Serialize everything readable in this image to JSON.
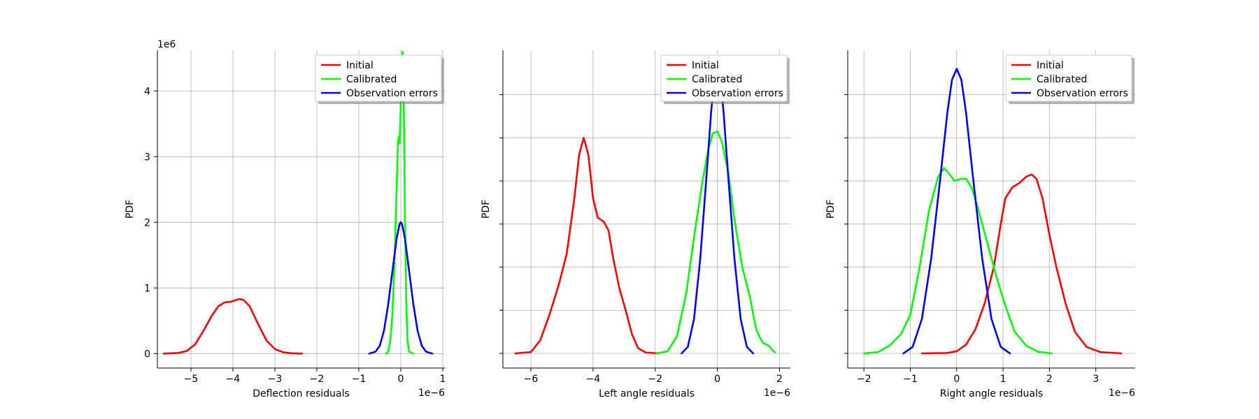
{
  "colors": {
    "initial": "#ff0000",
    "calibrated": "#00ff00",
    "observation": "#0000ff",
    "grid": "#b0b0b0"
  },
  "chart_data": [
    {
      "type": "line",
      "xlabel": "Deflection residuals",
      "ylabel": "PDF",
      "x_offset_label": "1e−6",
      "y_offset_label": "1e6",
      "xlim": [
        -5.8,
        1.05
      ],
      "ylim": [
        -0.22,
        4.62
      ],
      "xticks": [
        -5,
        -4,
        -3,
        -2,
        -1,
        0,
        1
      ],
      "xtick_labels": [
        "−5",
        "−4",
        "−3",
        "−2",
        "−1",
        "0",
        "1"
      ],
      "yticks": [
        0,
        1,
        2,
        3,
        4
      ],
      "ytick_labels": [
        "0",
        "1",
        "2",
        "3",
        "4"
      ],
      "legend": "top-right",
      "series": [
        {
          "name": "Initial",
          "color": "#ff0000",
          "points": [
            [
              -5.65,
              0
            ],
            [
              -5.3,
              0.01
            ],
            [
              -5.1,
              0.04
            ],
            [
              -4.9,
              0.14
            ],
            [
              -4.7,
              0.35
            ],
            [
              -4.5,
              0.58
            ],
            [
              -4.35,
              0.72
            ],
            [
              -4.2,
              0.78
            ],
            [
              -4.05,
              0.79
            ],
            [
              -3.95,
              0.81
            ],
            [
              -3.85,
              0.83
            ],
            [
              -3.75,
              0.82
            ],
            [
              -3.6,
              0.72
            ],
            [
              -3.4,
              0.45
            ],
            [
              -3.2,
              0.2
            ],
            [
              -3.0,
              0.07
            ],
            [
              -2.8,
              0.02
            ],
            [
              -2.6,
              0.005
            ],
            [
              -2.35,
              0
            ]
          ]
        },
        {
          "name": "Calibrated",
          "color": "#00ff00",
          "points": [
            [
              -0.35,
              0
            ],
            [
              -0.3,
              0.03
            ],
            [
              -0.25,
              0.2
            ],
            [
              -0.2,
              0.6
            ],
            [
              -0.15,
              1.4
            ],
            [
              -0.1,
              2.5
            ],
            [
              -0.07,
              3.2
            ],
            [
              -0.05,
              3.3
            ],
            [
              -0.03,
              3.2
            ],
            [
              -0.01,
              3.6
            ],
            [
              0.02,
              4.3
            ],
            [
              0.04,
              4.6
            ],
            [
              0.06,
              4.3
            ],
            [
              0.08,
              3.3
            ],
            [
              0.1,
              2.0
            ],
            [
              0.13,
              0.8
            ],
            [
              0.16,
              0.2
            ],
            [
              0.2,
              0.03
            ],
            [
              0.3,
              0
            ]
          ]
        },
        {
          "name": "Observation errors",
          "color": "#0000ff",
          "points": [
            [
              -0.75,
              0
            ],
            [
              -0.6,
              0.03
            ],
            [
              -0.5,
              0.12
            ],
            [
              -0.4,
              0.35
            ],
            [
              -0.3,
              0.75
            ],
            [
              -0.2,
              1.25
            ],
            [
              -0.1,
              1.75
            ],
            [
              -0.03,
              1.97
            ],
            [
              0,
              2.0
            ],
            [
              0.03,
              1.97
            ],
            [
              0.1,
              1.75
            ],
            [
              0.2,
              1.25
            ],
            [
              0.3,
              0.75
            ],
            [
              0.4,
              0.35
            ],
            [
              0.5,
              0.12
            ],
            [
              0.6,
              0.03
            ],
            [
              0.75,
              0
            ]
          ]
        }
      ]
    },
    {
      "type": "line",
      "xlabel": "Left angle residuals",
      "ylabel": "PDF",
      "x_offset_label": "1e−6",
      "y_offset_label": "",
      "xlim": [
        -6.9,
        2.35
      ],
      "ylim": [
        -0.34,
        7.03
      ],
      "xticks": [
        -6,
        -4,
        -2,
        0,
        2
      ],
      "xtick_labels": [
        "−6",
        "−4",
        "−2",
        "0",
        "2"
      ],
      "yticks": [
        0,
        1,
        2,
        3,
        4,
        5,
        6
      ],
      "ytick_labels": [
        "",
        "",
        "",
        "",
        "",
        "",
        ""
      ],
      "legend": "top-right",
      "series": [
        {
          "name": "Initial",
          "color": "#ff0000",
          "points": [
            [
              -6.5,
              0
            ],
            [
              -6.0,
              0.03
            ],
            [
              -5.7,
              0.3
            ],
            [
              -5.4,
              0.9
            ],
            [
              -5.1,
              1.6
            ],
            [
              -4.85,
              2.3
            ],
            [
              -4.6,
              3.6
            ],
            [
              -4.45,
              4.6
            ],
            [
              -4.3,
              5.0
            ],
            [
              -4.15,
              4.6
            ],
            [
              -4.0,
              3.6
            ],
            [
              -3.85,
              3.15
            ],
            [
              -3.65,
              3.05
            ],
            [
              -3.5,
              2.85
            ],
            [
              -3.35,
              2.2
            ],
            [
              -3.15,
              1.5
            ],
            [
              -2.95,
              1.0
            ],
            [
              -2.75,
              0.45
            ],
            [
              -2.55,
              0.12
            ],
            [
              -2.3,
              0.02
            ],
            [
              -1.9,
              0
            ]
          ]
        },
        {
          "name": "Calibrated",
          "color": "#00ff00",
          "points": [
            [
              -1.95,
              0
            ],
            [
              -1.6,
              0.05
            ],
            [
              -1.3,
              0.4
            ],
            [
              -1.0,
              1.4
            ],
            [
              -0.75,
              2.7
            ],
            [
              -0.5,
              3.9
            ],
            [
              -0.3,
              4.7
            ],
            [
              -0.15,
              5.1
            ],
            [
              0,
              5.15
            ],
            [
              0.15,
              4.9
            ],
            [
              0.35,
              4.2
            ],
            [
              0.55,
              3.1
            ],
            [
              0.8,
              2.0
            ],
            [
              1.05,
              1.3
            ],
            [
              1.25,
              0.55
            ],
            [
              1.45,
              0.25
            ],
            [
              1.65,
              0.18
            ],
            [
              1.85,
              0.02
            ]
          ]
        },
        {
          "name": "Observation errors",
          "color": "#0000ff",
          "points": [
            [
              -1.15,
              0
            ],
            [
              -0.95,
              0.15
            ],
            [
              -0.75,
              0.8
            ],
            [
              -0.55,
              2.2
            ],
            [
              -0.35,
              4.1
            ],
            [
              -0.2,
              5.6
            ],
            [
              -0.1,
              6.35
            ],
            [
              0,
              6.6
            ],
            [
              0.1,
              6.35
            ],
            [
              0.2,
              5.6
            ],
            [
              0.35,
              4.1
            ],
            [
              0.55,
              2.2
            ],
            [
              0.75,
              0.8
            ],
            [
              0.95,
              0.15
            ],
            [
              1.15,
              0
            ]
          ]
        }
      ]
    },
    {
      "type": "line",
      "xlabel": "Right angle residuals",
      "ylabel": "PDF",
      "x_offset_label": "1e−6",
      "y_offset_label": "",
      "xlim": [
        -2.35,
        3.85
      ],
      "ylim": [
        -0.34,
        7.03
      ],
      "xticks": [
        -2,
        -1,
        0,
        1,
        2,
        3
      ],
      "xtick_labels": [
        "−2",
        "−1",
        "0",
        "1",
        "2",
        "3"
      ],
      "yticks": [
        0,
        1,
        2,
        3,
        4,
        5,
        6
      ],
      "ytick_labels": [
        "",
        "",
        "",
        "",
        "",
        "",
        ""
      ],
      "legend": "top-right",
      "series": [
        {
          "name": "Initial",
          "color": "#ff0000",
          "points": [
            [
              -0.75,
              0
            ],
            [
              -0.2,
              0.01
            ],
            [
              0,
              0.05
            ],
            [
              0.2,
              0.2
            ],
            [
              0.4,
              0.55
            ],
            [
              0.6,
              1.15
            ],
            [
              0.8,
              2.0
            ],
            [
              0.95,
              3.0
            ],
            [
              1.05,
              3.6
            ],
            [
              1.2,
              3.85
            ],
            [
              1.35,
              3.95
            ],
            [
              1.5,
              4.1
            ],
            [
              1.62,
              4.15
            ],
            [
              1.72,
              4.05
            ],
            [
              1.85,
              3.6
            ],
            [
              2.0,
              2.75
            ],
            [
              2.15,
              2.0
            ],
            [
              2.35,
              1.15
            ],
            [
              2.55,
              0.5
            ],
            [
              2.8,
              0.15
            ],
            [
              3.1,
              0.03
            ],
            [
              3.55,
              0
            ]
          ]
        },
        {
          "name": "Calibrated",
          "color": "#00ff00",
          "points": [
            [
              -2.0,
              0
            ],
            [
              -1.7,
              0.03
            ],
            [
              -1.45,
              0.18
            ],
            [
              -1.2,
              0.45
            ],
            [
              -1.0,
              0.9
            ],
            [
              -0.8,
              2.0
            ],
            [
              -0.6,
              3.3
            ],
            [
              -0.4,
              4.1
            ],
            [
              -0.27,
              4.3
            ],
            [
              -0.15,
              4.15
            ],
            [
              -0.05,
              4.0
            ],
            [
              0.1,
              4.05
            ],
            [
              0.2,
              4.05
            ],
            [
              0.32,
              3.85
            ],
            [
              0.45,
              3.4
            ],
            [
              0.65,
              2.6
            ],
            [
              0.85,
              1.8
            ],
            [
              1.05,
              1.1
            ],
            [
              1.25,
              0.5
            ],
            [
              1.5,
              0.18
            ],
            [
              1.75,
              0.04
            ],
            [
              2.05,
              0
            ]
          ]
        },
        {
          "name": "Observation errors",
          "color": "#0000ff",
          "points": [
            [
              -1.15,
              0
            ],
            [
              -0.95,
              0.15
            ],
            [
              -0.75,
              0.8
            ],
            [
              -0.55,
              2.2
            ],
            [
              -0.35,
              4.1
            ],
            [
              -0.2,
              5.6
            ],
            [
              -0.1,
              6.35
            ],
            [
              0,
              6.6
            ],
            [
              0.1,
              6.35
            ],
            [
              0.2,
              5.6
            ],
            [
              0.35,
              4.1
            ],
            [
              0.55,
              2.2
            ],
            [
              0.75,
              0.8
            ],
            [
              0.95,
              0.15
            ],
            [
              1.15,
              0
            ]
          ]
        }
      ]
    }
  ]
}
